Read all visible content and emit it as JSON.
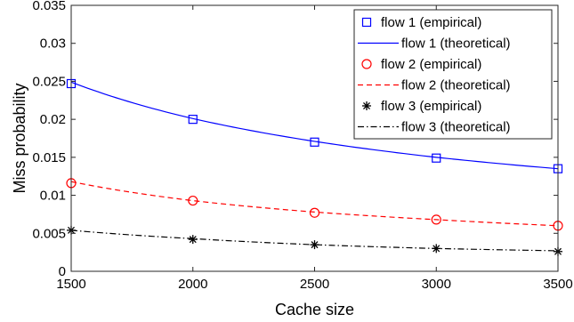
{
  "chart_data": {
    "type": "line",
    "xlabel": "Cache size",
    "ylabel": "Miss probability",
    "xlim": [
      1500,
      3500
    ],
    "ylim": [
      0,
      0.035
    ],
    "xticks": [
      "1500",
      "2000",
      "2500",
      "3000",
      "3500"
    ],
    "yticks": [
      "0",
      "0.005",
      "0.01",
      "0.015",
      "0.02",
      "0.025",
      "0.03",
      "0.035"
    ],
    "grid": false,
    "legend_position": "top-right",
    "x": [
      1500,
      2000,
      2500,
      3000,
      3500
    ],
    "series": [
      {
        "name": "flow 1 (empirical)",
        "style": "marker",
        "marker": "square",
        "color": "#0000ff",
        "values": [
          0.0247,
          0.02,
          0.017,
          0.0149,
          0.0135
        ]
      },
      {
        "name": "flow 1 (theoretical)",
        "style": "solid",
        "color": "#0000ff",
        "values": [
          0.0249,
          0.0201,
          0.0171,
          0.015,
          0.0135
        ]
      },
      {
        "name": "flow 2 (empirical)",
        "style": "marker",
        "marker": "circle",
        "color": "#ff0000",
        "values": [
          0.0116,
          0.0093,
          0.0077,
          0.0068,
          0.006
        ]
      },
      {
        "name": "flow 2 (theoretical)",
        "style": "dashed",
        "color": "#ff0000",
        "values": [
          0.0118,
          0.0093,
          0.0078,
          0.0068,
          0.006
        ]
      },
      {
        "name": "flow 3 (empirical)",
        "style": "marker",
        "marker": "asterisk",
        "color": "#000000",
        "values": [
          0.0054,
          0.0042,
          0.0035,
          0.003,
          0.0026
        ]
      },
      {
        "name": "flow 3 (theoretical)",
        "style": "dashdot",
        "color": "#000000",
        "values": [
          0.0054,
          0.0043,
          0.0035,
          0.003,
          0.0027
        ]
      }
    ]
  }
}
